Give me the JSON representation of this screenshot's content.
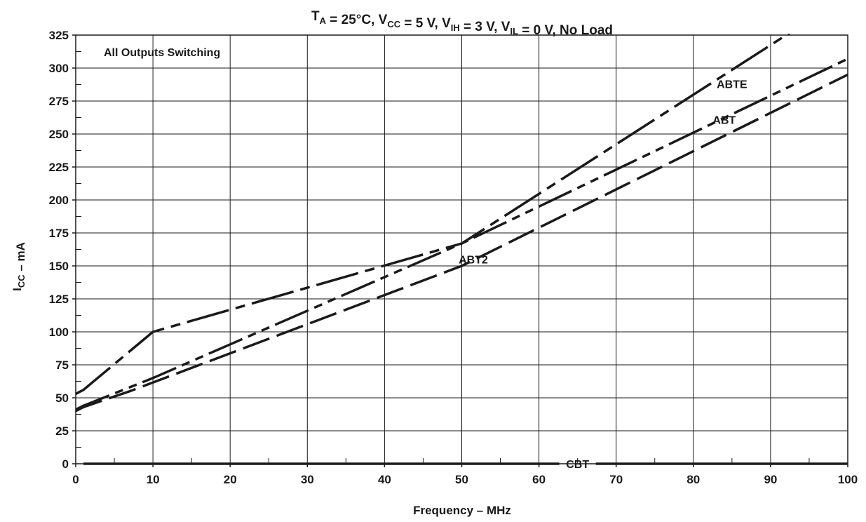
{
  "chart_data": {
    "type": "line",
    "title": {
      "parts": [
        {
          "t": "T"
        },
        {
          "t": "A",
          "sub": true
        },
        {
          "t": " = 25°C, V"
        },
        {
          "t": "CC",
          "sub": true
        },
        {
          "t": " = 5 V, V"
        },
        {
          "t": "IH",
          "sub": true
        },
        {
          "t": " = 3 V, V"
        },
        {
          "t": "IL",
          "sub": true
        },
        {
          "t": " = 0 V, No Load"
        }
      ]
    },
    "xlabel": "Frequency – MHz",
    "ylabel": {
      "parts": [
        {
          "t": "I"
        },
        {
          "t": "CC",
          "sub": true
        },
        {
          "t": " – mA"
        }
      ]
    },
    "annotation": "All Outputs Switching",
    "xlim": [
      0,
      100
    ],
    "ylim": [
      0,
      325
    ],
    "x_ticks": [
      0,
      10,
      20,
      30,
      40,
      50,
      60,
      70,
      80,
      90,
      100
    ],
    "y_ticks": [
      0,
      25,
      50,
      75,
      100,
      125,
      150,
      175,
      200,
      225,
      250,
      275,
      300,
      325
    ],
    "grid": true,
    "series": [
      {
        "name": "ABTE",
        "style": "long-short-dash",
        "color": "#1a1a1a",
        "x": [
          0,
          1,
          10,
          50,
          100
        ],
        "y": [
          53,
          56,
          100,
          167,
          355
        ],
        "label_at": [
          85,
          288
        ]
      },
      {
        "name": "ABT",
        "style": "long-short-short-dash",
        "color": "#1a1a1a",
        "x": [
          0,
          1,
          10,
          50,
          100
        ],
        "y": [
          41,
          44,
          65,
          167,
          307
        ],
        "label_at": [
          84,
          261
        ]
      },
      {
        "name": "ABT2",
        "style": "long-dash",
        "color": "#1a1a1a",
        "x": [
          0,
          1,
          7,
          50,
          100
        ],
        "y": [
          40,
          43,
          55,
          150,
          295
        ],
        "label_at": [
          51.5,
          155
        ]
      },
      {
        "name": "CBT",
        "style": "solid-with-label-gap",
        "color": "#1a1a1a",
        "x": [
          1,
          100
        ],
        "y": [
          0,
          0
        ],
        "label_at": [
          65,
          0
        ]
      }
    ]
  }
}
